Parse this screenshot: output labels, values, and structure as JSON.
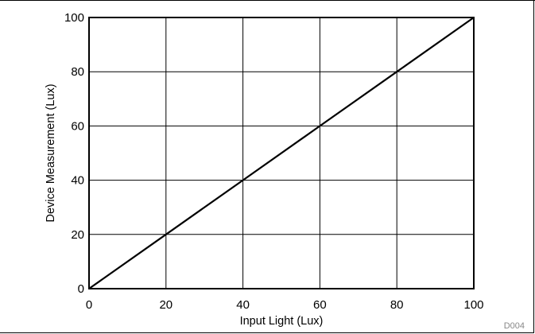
{
  "chart_data": {
    "type": "line",
    "xlabel": "Input Light (Lux)",
    "ylabel": "Device Measurement (Lux)",
    "xlim": [
      0,
      100
    ],
    "ylim": [
      0,
      100
    ],
    "x_ticks": [
      0,
      20,
      40,
      60,
      80,
      100
    ],
    "y_ticks": [
      0,
      20,
      40,
      60,
      80,
      100
    ],
    "grid": true,
    "series": [
      {
        "x": [
          0,
          20,
          40,
          60,
          80,
          100
        ],
        "y": [
          0,
          20,
          40,
          60,
          80,
          100
        ]
      }
    ],
    "figure_code": "D004"
  },
  "colors": {
    "line": "#000000",
    "grid": "#000000",
    "figure_code": "#888888"
  }
}
